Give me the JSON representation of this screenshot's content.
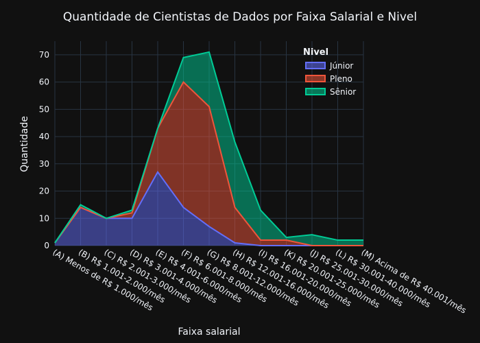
{
  "chart_data": {
    "type": "area",
    "stacked": true,
    "title": "Quantidade de Cientistas de Dados por Faixa Salarial e Nivel",
    "xlabel": "Faixa salarial",
    "ylabel": "Quantidade",
    "ylim": [
      0,
      75
    ],
    "yticks": [
      0,
      10,
      20,
      30,
      40,
      50,
      60,
      70
    ],
    "grid": true,
    "legend_title": "Nivel",
    "legend_position": "top-right",
    "categories": [
      "(A) Menos de R$ 1.000/mês",
      "(B) R$ 1.001-2.000/mês",
      "(C) R$ 2.001-3.000/mês",
      "(D) R$ 3.001-4.000/mês",
      "(E) R$ 4.001-6.000/mês",
      "(F) R$ 6.001-8.000/mês",
      "(G) R$ 8.001-12.000/mês",
      "(H) R$ 12.001-16.000/mês",
      "(I) R$ 16.001-20.000/mês",
      "(K) R$ 20.001-25.000/mês",
      "(J) R$ 25.001-30.000/mês",
      "(L) R$ 30.001-40.000/mês",
      "(M) Acima de R$ 40.001/mês"
    ],
    "series": [
      {
        "name": "Júnior",
        "color": "#636efa",
        "values": [
          1,
          14,
          10,
          10,
          27,
          14,
          7,
          1,
          0,
          0,
          0,
          0,
          0
        ]
      },
      {
        "name": "Pleno",
        "color": "#ef553b",
        "values": [
          0,
          0,
          0,
          2,
          16,
          46,
          44,
          13,
          2,
          2,
          0,
          0,
          0
        ]
      },
      {
        "name": "Sênior",
        "color": "#00cc96",
        "values": [
          0,
          1,
          0,
          1,
          0,
          9,
          20,
          24,
          11,
          1,
          4,
          2,
          2
        ]
      }
    ]
  }
}
